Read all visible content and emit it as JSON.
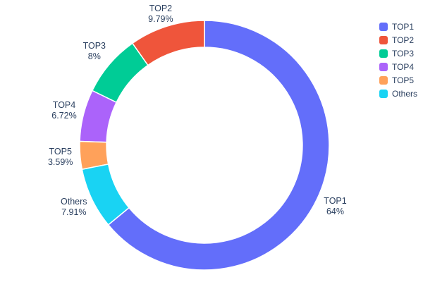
{
  "chart_data": {
    "type": "pie",
    "subtype": "donut",
    "title": "",
    "labels": [
      "TOP1",
      "TOP2",
      "TOP3",
      "TOP4",
      "TOP5",
      "Others"
    ],
    "values": [
      64,
      9.79,
      8,
      6.72,
      3.59,
      7.91
    ],
    "pct_labels": [
      "64%",
      "9.79%",
      "8%",
      "6.72%",
      "3.59%",
      "7.91%"
    ],
    "colors": [
      "#636efa",
      "#ef553b",
      "#00cc96",
      "#ab63fa",
      "#ffa15a",
      "#19d3f3"
    ],
    "hole": 0.785,
    "label_position": "outside",
    "legend_position": "top-right",
    "label_text_color": "#2a3f5f",
    "background_color": "#ffffff"
  }
}
